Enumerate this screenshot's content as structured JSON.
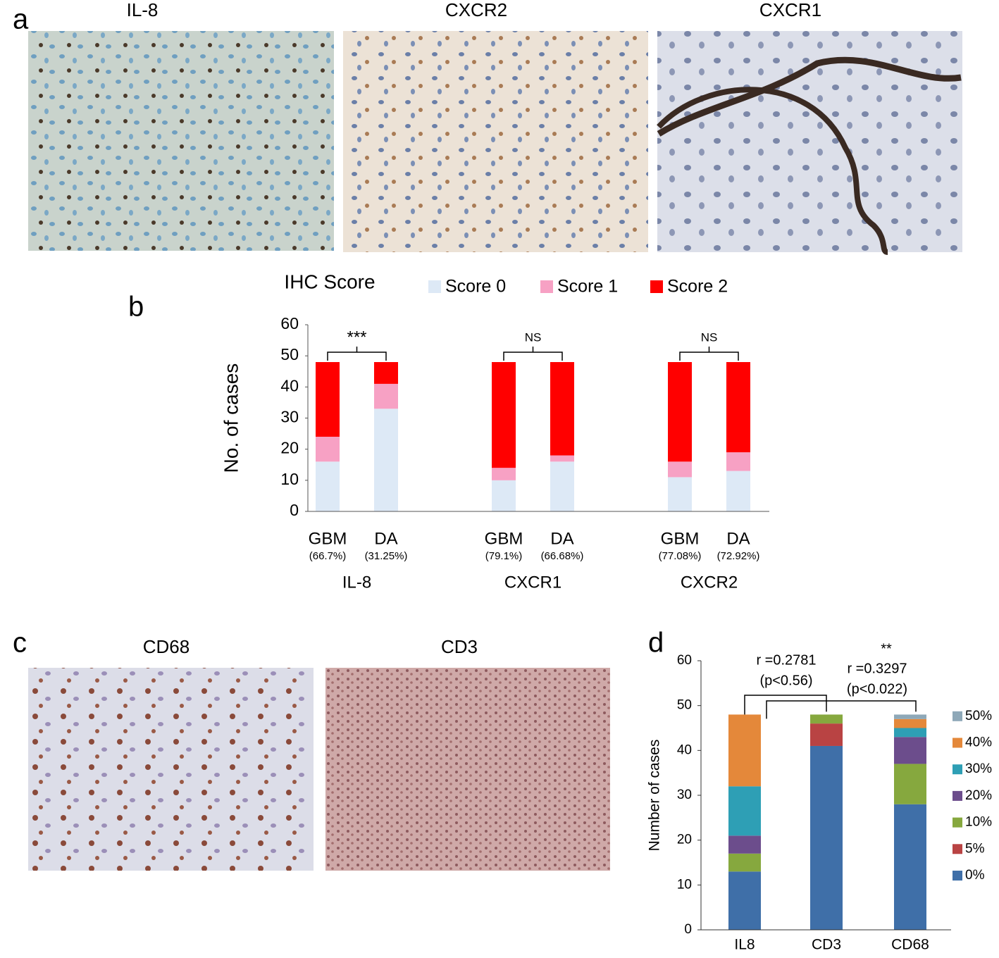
{
  "figure": {
    "panel_labels": [
      "a",
      "b",
      "c",
      "d"
    ],
    "image_titles": [
      "IL-8",
      "CXCR2",
      "CXCR1",
      "CD68",
      "CD3"
    ]
  },
  "chart_data": [
    {
      "type": "stacked_bar",
      "title": "IHC Score",
      "ylabel": "No. of cases",
      "categories": [
        "GBM",
        "DA",
        "GBM",
        "DA",
        "GBM",
        "DA"
      ],
      "sublabels": [
        "(66.7%)",
        "(31.25%)",
        "(79.1%)",
        "(66.68%)",
        "(77.08%)",
        "(72.92%)"
      ],
      "groups": [
        "IL-8",
        "CXCR1",
        "CXCR2"
      ],
      "significance": [
        "***",
        "NS",
        "NS"
      ],
      "series": [
        {
          "name": "Score 0",
          "color": "#dde9f6",
          "values": [
            16,
            33,
            10,
            16,
            11,
            13
          ]
        },
        {
          "name": "Score 1",
          "color": "#f7a1c4",
          "values": [
            8,
            8,
            4,
            2,
            5,
            6
          ]
        },
        {
          "name": "Score 2",
          "color": "#ff0000",
          "values": [
            24,
            7,
            34,
            30,
            32,
            29
          ]
        }
      ],
      "ylim": [
        0,
        60
      ],
      "yticks": [
        0,
        10,
        20,
        30,
        40,
        50,
        60
      ],
      "legend": "top"
    },
    {
      "type": "stacked_bar",
      "ylabel": "Number of cases",
      "categories": [
        "IL8",
        "CD3",
        "CD68"
      ],
      "annotations": [
        "r =0.2781",
        "(p<0.56)",
        "**",
        "r =0.3297",
        "(p<0.022)"
      ],
      "series": [
        {
          "name": "0%",
          "color": "#3f6fa8",
          "values": [
            13,
            41,
            28
          ]
        },
        {
          "name": "5%",
          "color": "#b94343",
          "values": [
            0,
            5,
            0
          ]
        },
        {
          "name": "10%",
          "color": "#86a83e",
          "values": [
            4,
            2,
            9
          ]
        },
        {
          "name": "20%",
          "color": "#6c4d8c",
          "values": [
            4,
            0,
            6
          ]
        },
        {
          "name": "30%",
          "color": "#2e9fb5",
          "values": [
            11,
            0,
            2
          ]
        },
        {
          "name": "40%",
          "color": "#e4883a",
          "values": [
            16,
            0,
            2
          ]
        },
        {
          "name": "50%",
          "color": "#8ea8b8",
          "values": [
            0,
            0,
            1
          ]
        }
      ],
      "ylim": [
        0,
        60
      ],
      "yticks": [
        0,
        10,
        20,
        30,
        40,
        50,
        60
      ],
      "legend": "right"
    }
  ]
}
